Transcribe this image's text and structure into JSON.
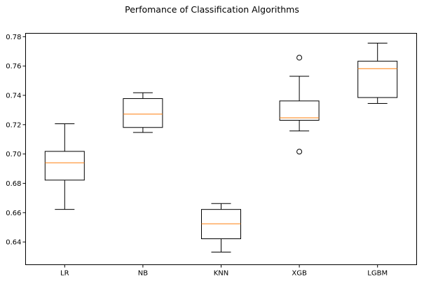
{
  "chart_data": {
    "type": "box",
    "title": "Perfomance of Classification Algorithms",
    "xlabel": "",
    "ylabel": "",
    "ylim": [
      0.6245,
      0.7823
    ],
    "yticks": [
      0.64,
      0.66,
      0.68,
      0.7,
      0.72,
      0.74,
      0.76,
      0.78
    ],
    "ytick_labels": [
      "0.64",
      "0.66",
      "0.68",
      "0.70",
      "0.72",
      "0.74",
      "0.76",
      "0.78"
    ],
    "categories": [
      "LR",
      "NB",
      "KNN",
      "XGB",
      "LGBM"
    ],
    "boxes": [
      {
        "name": "LR",
        "whisker_low": 0.6622,
        "q1": 0.6822,
        "median": 0.694,
        "q3": 0.7018,
        "whisker_high": 0.7206,
        "outliers": []
      },
      {
        "name": "NB",
        "whisker_low": 0.7147,
        "q1": 0.7181,
        "median": 0.7272,
        "q3": 0.7378,
        "whisker_high": 0.7418,
        "outliers": []
      },
      {
        "name": "KNN",
        "whisker_low": 0.6331,
        "q1": 0.6422,
        "median": 0.6524,
        "q3": 0.6622,
        "whisker_high": 0.6662,
        "outliers": []
      },
      {
        "name": "XGB",
        "whisker_low": 0.7157,
        "q1": 0.723,
        "median": 0.7247,
        "q3": 0.7362,
        "whisker_high": 0.753,
        "outliers": [
          0.7016,
          0.7657
        ]
      },
      {
        "name": "LGBM",
        "whisker_low": 0.7345,
        "q1": 0.7385,
        "median": 0.7582,
        "q3": 0.7633,
        "whisker_high": 0.7756,
        "outliers": []
      }
    ],
    "grid": false,
    "colors": {
      "box": "#000000",
      "median": "#ff7f0e",
      "axes": "#000000",
      "background": "#ffffff"
    }
  }
}
